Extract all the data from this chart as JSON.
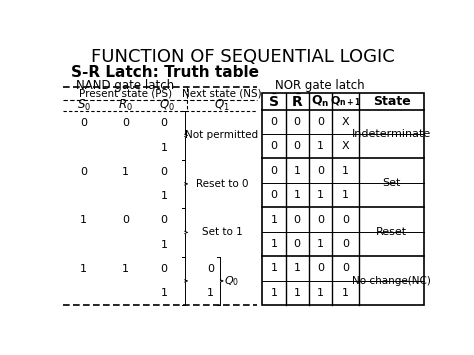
{
  "title": "FUNCTION OF SEQUENTIAL LOGIC",
  "subtitle": "S-R Latch: Truth table",
  "nand_label": "NAND gate latch",
  "nor_label": "NOR gate latch",
  "bg_color": "#ffffff",
  "nand_headers": [
    "Present state (PS)",
    "Next state (NS)"
  ],
  "nand_subheaders": [
    "S_0",
    "R_0",
    "Q_0",
    "Q_1"
  ],
  "nand_data": [
    [
      "0",
      "0",
      "0",
      "1",
      "Not permitted"
    ],
    [
      "0",
      "1",
      "0",
      "1",
      "Reset to 0"
    ],
    [
      "1",
      "0",
      "0",
      "1",
      "Set to 1"
    ],
    [
      "1",
      "1",
      "0",
      "1",
      "0",
      "1",
      "Q_0"
    ]
  ],
  "nor_col_headers": [
    "S_bar",
    "R_bar",
    "Q_n",
    "Q_n+1",
    "State"
  ],
  "nor_rows": [
    [
      "0",
      "0",
      "0",
      "X",
      "Indeterminate"
    ],
    [
      "0",
      "0",
      "1",
      "X",
      ""
    ],
    [
      "0",
      "1",
      "0",
      "1",
      "Set"
    ],
    [
      "0",
      "1",
      "1",
      "1",
      ""
    ],
    [
      "1",
      "0",
      "0",
      "0",
      "Reset"
    ],
    [
      "1",
      "0",
      "1",
      "0",
      ""
    ],
    [
      "1",
      "1",
      "0",
      "0",
      "No change(NC)"
    ],
    [
      "1",
      "1",
      "1",
      "1",
      ""
    ]
  ],
  "title_fs": 13,
  "subtitle_fs": 11,
  "label_fs": 8.5,
  "table_fs": 8,
  "header_fs": 7.5
}
